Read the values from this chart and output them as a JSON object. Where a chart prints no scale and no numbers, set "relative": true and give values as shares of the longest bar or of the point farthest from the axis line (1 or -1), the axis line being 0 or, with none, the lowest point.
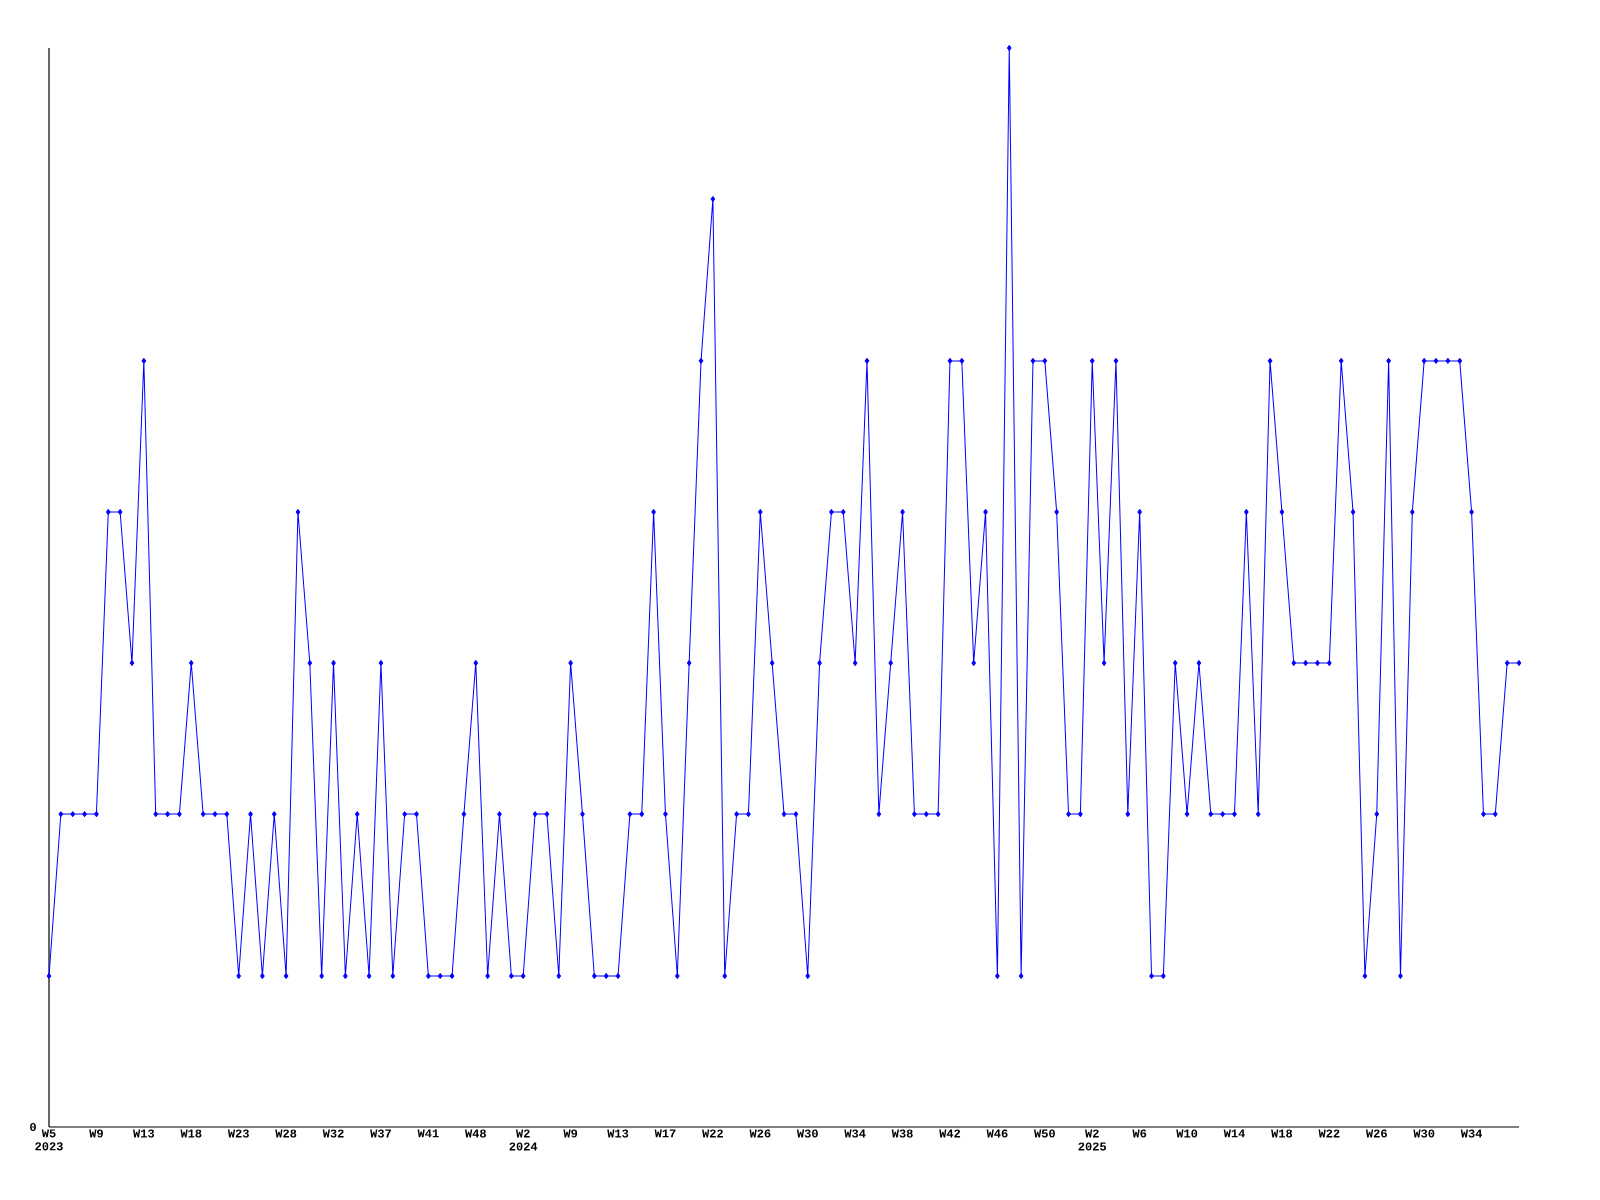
{
  "chart_data": {
    "type": "line",
    "relative": true,
    "color": "#0000ff",
    "marker": "diamond",
    "annotations": [
      "0"
    ],
    "categories": [
      "W5 2023",
      null,
      null,
      null,
      "W9",
      null,
      null,
      null,
      "W13",
      null,
      null,
      null,
      "W18",
      null,
      null,
      null,
      "W23",
      null,
      null,
      null,
      "W28",
      null,
      null,
      null,
      "W32",
      null,
      null,
      null,
      "W37",
      null,
      null,
      null,
      "W41",
      null,
      null,
      null,
      "W48",
      null,
      null,
      null,
      "W2 2024",
      null,
      null,
      null,
      "W9",
      null,
      null,
      null,
      "W13",
      null,
      null,
      null,
      "W17",
      null,
      null,
      null,
      "W22",
      null,
      null,
      null,
      "W26",
      null,
      null,
      null,
      "W30",
      null,
      null,
      null,
      "W34",
      null,
      null,
      null,
      "W38",
      null,
      null,
      null,
      "W42",
      null,
      null,
      null,
      "W46",
      null,
      null,
      null,
      "W50",
      null,
      null,
      null,
      "W2 2025",
      null,
      null,
      null,
      "W6",
      null,
      null,
      null,
      "W10",
      null,
      null,
      null,
      "W14",
      null,
      null,
      null,
      "W18",
      null,
      null,
      null,
      "W22",
      null,
      null,
      null,
      "W26",
      null,
      null,
      null,
      "W30",
      null,
      null,
      null,
      "W34",
      null,
      null,
      null,
      null
    ],
    "values": [
      0.14,
      0.29,
      0.29,
      0.29,
      0.29,
      0.57,
      0.57,
      0.43,
      0.71,
      0.29,
      0.29,
      0.29,
      0.43,
      0.29,
      0.29,
      0.29,
      0.14,
      0.29,
      0.14,
      0.29,
      0.14,
      0.57,
      0.43,
      0.14,
      0.43,
      0.14,
      0.29,
      0.14,
      0.43,
      0.14,
      0.29,
      0.29,
      0.14,
      0.14,
      0.14,
      0.29,
      0.43,
      0.14,
      0.29,
      0.14,
      0.14,
      0.29,
      0.29,
      0.14,
      0.43,
      0.29,
      0.14,
      0.14,
      0.14,
      0.29,
      0.29,
      0.57,
      0.29,
      0.14,
      0.43,
      0.71,
      0.86,
      0.14,
      0.29,
      0.29,
      0.57,
      0.43,
      0.29,
      0.29,
      0.14,
      0.43,
      0.57,
      0.57,
      0.43,
      0.71,
      0.29,
      0.43,
      0.57,
      0.29,
      0.29,
      0.29,
      0.71,
      0.71,
      0.43,
      0.57,
      0.14,
      1,
      0.14,
      0.71,
      0.71,
      0.57,
      0.29,
      0.29,
      0.71,
      0.43,
      0.71,
      0.29,
      0.57,
      0.14,
      0.14,
      0.43,
      0.29,
      0.43,
      0.29,
      0.29,
      0.29,
      0.57,
      0.29,
      0.71,
      0.57,
      0.43,
      0.43,
      0.43,
      0.43,
      0.71,
      0.57,
      0.14,
      0.29,
      0.71,
      0.14,
      0.57,
      0.71,
      0.71,
      0.71,
      0.71,
      0.57,
      0.29,
      0.29,
      0.43,
      0.43
    ]
  }
}
